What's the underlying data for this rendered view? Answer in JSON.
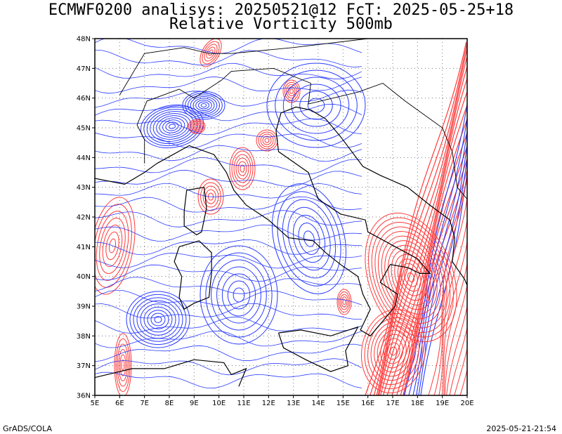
{
  "header": {
    "line1": "ECMWF0200 analisys: 20250521@12 FcT: 2025-05-25+18",
    "line2": "Relative Vorticity 500mb"
  },
  "axes": {
    "lat_labels": [
      "36N",
      "37N",
      "38N",
      "39N",
      "40N",
      "41N",
      "42N",
      "43N",
      "44N",
      "45N",
      "46N",
      "47N",
      "48N"
    ],
    "lon_labels": [
      "5E",
      "6E",
      "7E",
      "8E",
      "9E",
      "10E",
      "11E",
      "12E",
      "13E",
      "14E",
      "15E",
      "16E",
      "17E",
      "18E",
      "19E",
      "20E"
    ],
    "lat_range": [
      36,
      48
    ],
    "lon_range": [
      5,
      20
    ],
    "grid": "dotted"
  },
  "colors": {
    "positive": "#ff3a3a",
    "negative": "#2a3bff",
    "coast": "#000000"
  },
  "footer": {
    "left": "GrADS/COLA",
    "right": "2025-05-21-21:54"
  }
}
